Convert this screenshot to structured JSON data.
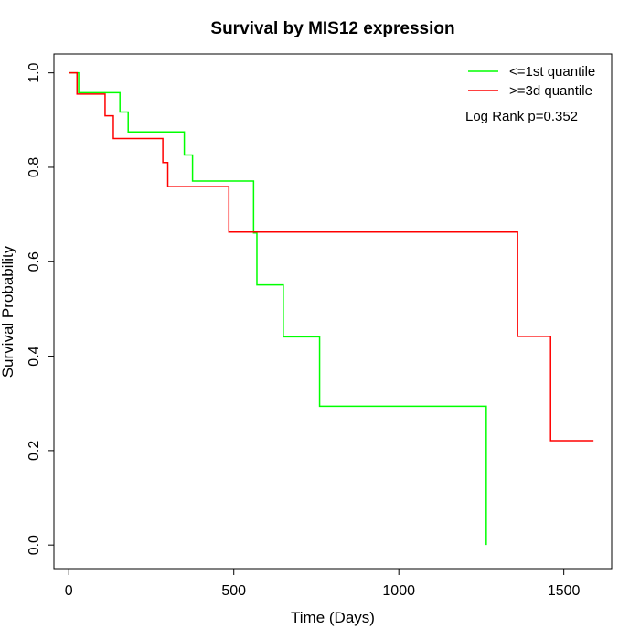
{
  "chart_data": {
    "type": "line",
    "step": true,
    "title": "Survival by MIS12 expression",
    "xlabel": "Time (Days)",
    "ylabel": "Survival Probability",
    "xlim": [
      -45,
      1645
    ],
    "ylim": [
      -0.05,
      1.04
    ],
    "xticks": [
      0,
      500,
      1000,
      1500
    ],
    "yticks": [
      0.0,
      0.2,
      0.4,
      0.6,
      0.8,
      1.0
    ],
    "xtick_labels": [
      "0",
      "500",
      "1000",
      "1500"
    ],
    "ytick_labels": [
      "0.0",
      "0.2",
      "0.4",
      "0.6",
      "0.8",
      "1.0"
    ],
    "grid": false,
    "legend_position": "top-right",
    "annotation": "Log Rank p=0.352",
    "series": [
      {
        "name": "<=1st quantile",
        "color": "#00ff00",
        "x": [
          0,
          30,
          155,
          180,
          350,
          375,
          560,
          570,
          650,
          760,
          1265,
          1265
        ],
        "y": [
          1.0,
          0.958,
          0.917,
          0.875,
          0.826,
          0.771,
          0.661,
          0.551,
          0.441,
          0.294,
          0.294,
          0.0
        ]
      },
      {
        "name": ">=3d quantile",
        "color": "#ff0000",
        "x": [
          0,
          25,
          110,
          135,
          285,
          300,
          485,
          1360,
          1460,
          1590
        ],
        "y": [
          1.0,
          0.955,
          0.909,
          0.861,
          0.81,
          0.759,
          0.663,
          0.442,
          0.221,
          0.221
        ]
      }
    ]
  }
}
